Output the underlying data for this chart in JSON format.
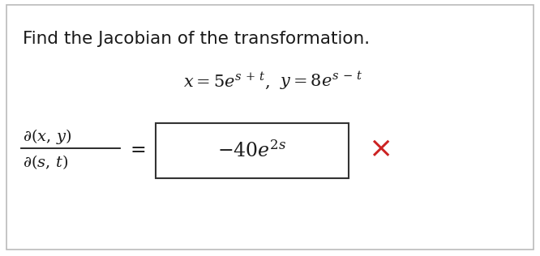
{
  "title": "Find the Jacobian of the transformation.",
  "bg_color": "#ffffff",
  "border_color": "#bbbbbb",
  "text_color": "#1a1a1a",
  "box_color": "#333333",
  "x_color": "#cc2222",
  "title_fontsize": 15.5,
  "eq_fontsize": 15,
  "jac_fontsize": 14,
  "ans_fontsize": 17,
  "figsize": [
    6.66,
    3.16
  ],
  "dpi": 100
}
